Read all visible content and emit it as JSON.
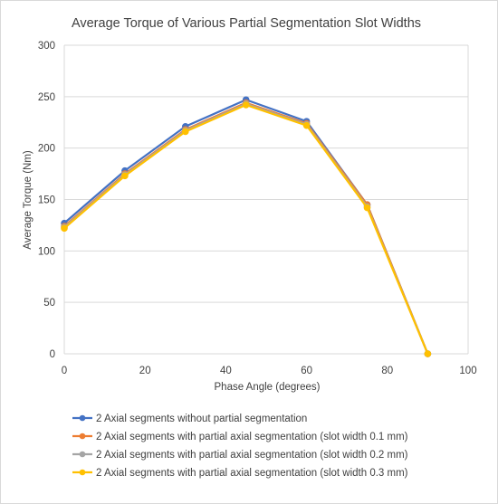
{
  "chart_data": {
    "type": "line",
    "title": "Average Torque of Various Partial Segmentation Slot Widths",
    "xlabel": "Phase Angle (degrees)",
    "ylabel": "Average Torque (Nm)",
    "xlim": [
      0,
      100
    ],
    "ylim": [
      0,
      300
    ],
    "xticks": [
      0,
      20,
      40,
      60,
      80,
      100
    ],
    "yticks": [
      0,
      50,
      100,
      150,
      200,
      250,
      300
    ],
    "x": [
      0,
      15,
      30,
      45,
      60,
      75,
      90
    ],
    "grid": "horizontal",
    "legend_position": "bottom",
    "series": [
      {
        "name": "2 Axial segments without partial segmentation",
        "color": "#4472C4",
        "values": [
          127,
          178,
          221,
          247,
          226,
          145,
          0
        ]
      },
      {
        "name": "2 Axial segments with partial axial segmentation (slot width 0.1 mm)",
        "color": "#ED7D31",
        "values": [
          124,
          175,
          218,
          244,
          224,
          145,
          0
        ]
      },
      {
        "name": "2 Axial segments with partial axial segmentation (slot width 0.2 mm)",
        "color": "#A5A5A5",
        "values": [
          123,
          174,
          217,
          243,
          223,
          143,
          0
        ]
      },
      {
        "name": "2 Axial segments with partial axial segmentation (slot width 0.3 mm)",
        "color": "#FFC000",
        "values": [
          122,
          173,
          216,
          242,
          222,
          142,
          0
        ]
      }
    ]
  }
}
